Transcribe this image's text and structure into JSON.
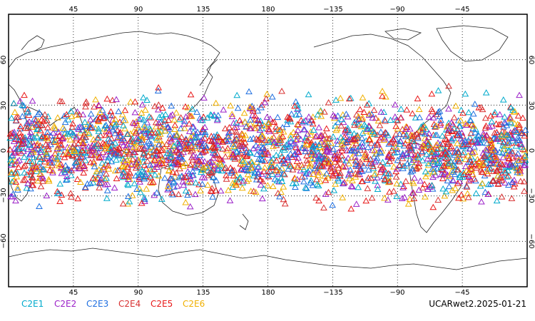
{
  "map": {
    "top_ticks": [
      "45",
      "90",
      "135",
      "180",
      "−135",
      "−90",
      "−45"
    ],
    "bottom_ticks": [
      "45",
      "90",
      "135",
      "180",
      "−135",
      "−90",
      "−45"
    ],
    "left_ticks": [
      "60",
      "30",
      "0",
      "−30",
      "−60"
    ],
    "right_ticks": [
      "60",
      "30",
      "0",
      "−30",
      "−60"
    ],
    "lon_lines": [
      45,
      90,
      135,
      180,
      225,
      270,
      315
    ],
    "lat_lines": [
      60,
      30,
      0,
      -30,
      -60
    ],
    "grid_style": "dotted",
    "marker_shape": "open-triangle",
    "observations_lat_band": [
      -45,
      45
    ]
  },
  "legend": {
    "items": [
      {
        "label": "C2E1",
        "color": "#00aacc"
      },
      {
        "label": "C2E2",
        "color": "#9b20c8"
      },
      {
        "label": "C2E3",
        "color": "#1f6fe0"
      },
      {
        "label": "C2E4",
        "color": "#d83030"
      },
      {
        "label": "C2E5",
        "color": "#e81818"
      },
      {
        "label": "C2E6",
        "color": "#f0b000"
      }
    ]
  },
  "footer_label": "UCARwet2.2025-01-21"
}
